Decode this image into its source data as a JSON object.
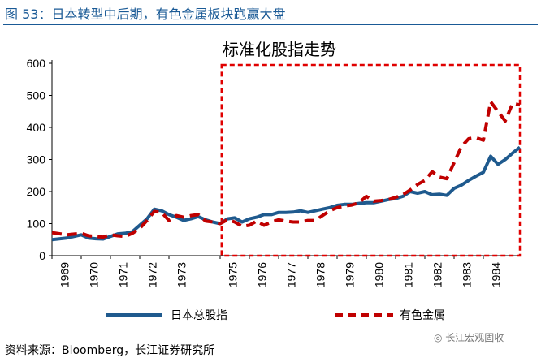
{
  "figure": {
    "title": "图 53：日本转型中后期，有色金属板块跑赢大盘",
    "source": "资料来源：Bloomberg，长江证券研究所",
    "watermark": "长江宏观固收"
  },
  "colors": {
    "series_1": "#1f5a8e",
    "series_2": "#c00000",
    "highlight_box": "#e00000"
  },
  "chart_data": {
    "type": "line",
    "title": "标准化股指走势",
    "xlabel": "",
    "ylabel": "",
    "x_range": [
      1969.0,
      1985.0
    ],
    "ylim": [
      0,
      600
    ],
    "y_ticks": [
      0,
      100,
      200,
      300,
      400,
      500,
      600
    ],
    "x_tick_labels": [
      "1969",
      "1970",
      "1971",
      "1972",
      "1973",
      "1975",
      "1976",
      "1977",
      "1978",
      "1979",
      "1980",
      "1981",
      "1982",
      "1983",
      "1984"
    ],
    "x_tick_positions": [
      1969.0,
      1970.0,
      1971.0,
      1972.0,
      1973.0,
      1974.75,
      1975.75,
      1976.75,
      1977.75,
      1978.75,
      1979.75,
      1980.75,
      1981.75,
      1982.75,
      1983.75
    ],
    "highlight_region": {
      "x_from": 1974.8,
      "x_to": 1985.0,
      "y_from": 0,
      "y_to": 595
    },
    "legend": [
      "日本总股指",
      "有色金属"
    ],
    "series": [
      {
        "name": "日本总股指",
        "style": "solid",
        "x": [
          1969.0,
          1969.5,
          1970.0,
          1970.25,
          1970.5,
          1970.75,
          1971.0,
          1971.25,
          1971.5,
          1971.75,
          1972.0,
          1972.25,
          1972.5,
          1972.75,
          1973.0,
          1973.25,
          1973.5,
          1973.75,
          1974.0,
          1974.25,
          1974.5,
          1974.75,
          1975.0,
          1975.25,
          1975.5,
          1975.75,
          1976.0,
          1976.25,
          1976.5,
          1976.75,
          1977.0,
          1977.25,
          1977.5,
          1977.75,
          1978.0,
          1978.25,
          1978.5,
          1978.75,
          1979.0,
          1979.25,
          1979.5,
          1979.75,
          1980.0,
          1980.25,
          1980.5,
          1980.75,
          1981.0,
          1981.25,
          1981.5,
          1981.75,
          1982.0,
          1982.25,
          1982.5,
          1982.75,
          1983.0,
          1983.25,
          1983.5,
          1983.75,
          1984.0,
          1984.25,
          1984.5,
          1984.75,
          1985.0
        ],
        "values": [
          50,
          55,
          65,
          55,
          53,
          52,
          60,
          68,
          70,
          75,
          95,
          115,
          145,
          140,
          128,
          120,
          110,
          115,
          122,
          112,
          105,
          100,
          115,
          118,
          105,
          115,
          120,
          128,
          128,
          135,
          135,
          136,
          140,
          135,
          140,
          145,
          150,
          157,
          160,
          160,
          163,
          165,
          165,
          170,
          175,
          178,
          185,
          200,
          195,
          200,
          190,
          192,
          188,
          210,
          220,
          235,
          248,
          260,
          310,
          285,
          300,
          320,
          338
        ]
      },
      {
        "name": "有色金属",
        "style": "dashed",
        "x": [
          1969.0,
          1969.5,
          1970.0,
          1970.25,
          1970.5,
          1970.75,
          1971.0,
          1971.25,
          1971.5,
          1971.75,
          1972.0,
          1972.25,
          1972.5,
          1972.75,
          1973.0,
          1973.25,
          1973.5,
          1973.75,
          1974.0,
          1974.25,
          1974.5,
          1974.75,
          1975.0,
          1975.25,
          1975.5,
          1975.75,
          1976.0,
          1976.25,
          1976.5,
          1976.75,
          1977.0,
          1977.25,
          1977.5,
          1977.75,
          1978.0,
          1978.25,
          1978.5,
          1978.75,
          1979.0,
          1979.25,
          1979.5,
          1979.75,
          1980.0,
          1980.25,
          1980.5,
          1980.75,
          1981.0,
          1981.25,
          1981.5,
          1981.75,
          1982.0,
          1982.25,
          1982.5,
          1982.75,
          1983.0,
          1983.25,
          1983.5,
          1983.75,
          1984.0,
          1984.25,
          1984.5,
          1984.75,
          1985.0
        ],
        "values": [
          72,
          65,
          70,
          62,
          60,
          58,
          65,
          62,
          60,
          70,
          85,
          110,
          138,
          135,
          110,
          125,
          120,
          125,
          128,
          108,
          105,
          100,
          112,
          105,
          92,
          95,
          108,
          95,
          105,
          112,
          108,
          105,
          105,
          110,
          110,
          125,
          140,
          150,
          155,
          158,
          165,
          185,
          170,
          172,
          175,
          182,
          190,
          205,
          222,
          235,
          262,
          245,
          240,
          290,
          340,
          365,
          368,
          360,
          480,
          450,
          420,
          475,
          470
        ]
      }
    ]
  }
}
